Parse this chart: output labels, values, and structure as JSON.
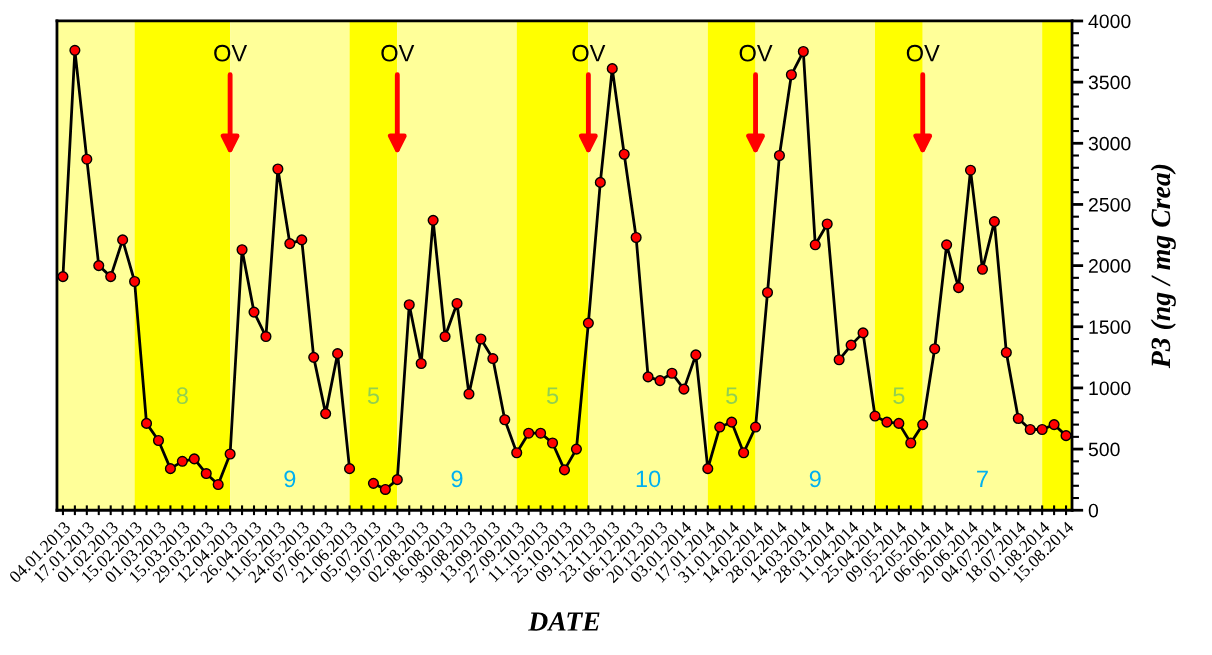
{
  "chart_data": {
    "type": "line",
    "xlabel": "DATE",
    "ylabel": "P3 (ng / mg Crea)",
    "categories": [
      "04.01.2013",
      null,
      "17.01.2013",
      null,
      "01.02.2013",
      null,
      "15.02.2013",
      null,
      "01.03.2013",
      null,
      "15.03.2013",
      null,
      "29.03.2013",
      null,
      "12.04.2013",
      null,
      "26.04.2013",
      null,
      "11.05.2013",
      null,
      "24.05.2013",
      null,
      "07.06.2013",
      null,
      "21.06.2013",
      null,
      "05.07.2013",
      null,
      "19.07.2013",
      null,
      "02.08.2013",
      null,
      "16.08.2013",
      null,
      "30.08.2013",
      null,
      "13.09.2013",
      null,
      "27.09.2013",
      null,
      "11.10.2013",
      null,
      "25.10.2013",
      null,
      "09.11.2013",
      null,
      "23.11.2013",
      null,
      "06.12.2013",
      null,
      "20.12.2013",
      null,
      "03.01.2014",
      null,
      "17.01.2014",
      null,
      "31.01.2014",
      null,
      "14.02.2014",
      null,
      "28.02.2014",
      null,
      "14.03.2014",
      null,
      "28.03.2014",
      null,
      "11.04.2014",
      null,
      "25.04.2014",
      null,
      "09.05.2014",
      null,
      "22.05.2014",
      null,
      "06.06.2014",
      null,
      "20.06.2014",
      null,
      "04.07.2014",
      null,
      "18.07.2014",
      null,
      "01.08.2014",
      null,
      "15.08.2014"
    ],
    "series": [
      {
        "color": "#ff0000",
        "values": [
          1910,
          3760,
          2870,
          2000,
          1910,
          2210,
          1870,
          710,
          570,
          340,
          400,
          420,
          300,
          210,
          460,
          2130,
          1620,
          1420,
          2790,
          2180,
          2210,
          1250,
          790,
          1280,
          340,
          null,
          220,
          170,
          250,
          1680,
          1200,
          2370,
          1420,
          1690,
          950,
          1400,
          1240,
          740,
          470,
          630,
          630,
          550,
          330,
          500,
          1530,
          2680,
          3610,
          2910,
          2230,
          1090,
          1060,
          1120,
          990,
          1270,
          340,
          680,
          720,
          470,
          680,
          1780,
          2900,
          3560,
          3750,
          2170,
          2340,
          1230,
          1350,
          1450,
          770,
          720,
          710,
          550,
          700,
          1320,
          2170,
          1820,
          2780,
          1970,
          2360,
          1290,
          750,
          660,
          660,
          700,
          610
        ]
      }
    ],
    "ylim": [
      0,
      4000
    ],
    "yticks": [
      0,
      500,
      1000,
      1500,
      2000,
      2500,
      3000,
      3500,
      4000
    ],
    "marker": "circle",
    "line_style": "solid",
    "grid": false,
    "legend": false,
    "bands": [
      {
        "axis": "x",
        "from": "04.01.2013",
        "to": "15.02.2013",
        "color": "#ffff99"
      },
      {
        "axis": "x",
        "from": "15.02.2013",
        "to": "12.04.2013",
        "color": "#ffff00",
        "label": "8"
      },
      {
        "axis": "x",
        "from": "12.04.2013",
        "to": "21.06.2013",
        "color": "#ffff99",
        "label": "9"
      },
      {
        "axis": "x",
        "from": "21.06.2013",
        "to": "19.07.2013",
        "color": "#ffff00",
        "label": "5"
      },
      {
        "axis": "x",
        "from": "19.07.2013",
        "to": "27.09.2013",
        "color": "#ffff99",
        "label": "9"
      },
      {
        "axis": "x",
        "from": "27.09.2013",
        "to": "09.11.2013",
        "color": "#ffff00",
        "label": "5"
      },
      {
        "axis": "x",
        "from": "09.11.2013",
        "to": "17.01.2014",
        "color": "#ffff99",
        "label": "10"
      },
      {
        "axis": "x",
        "from": "17.01.2014",
        "to": "14.02.2014",
        "color": "#ffff00",
        "label": "5"
      },
      {
        "axis": "x",
        "from": "14.02.2014",
        "to": "25.04.2014",
        "color": "#ffff99",
        "label": "9"
      },
      {
        "axis": "x",
        "from": "25.04.2014",
        "to": "22.05.2014",
        "color": "#ffff00",
        "label": "5"
      },
      {
        "axis": "x",
        "from": "22.05.2014",
        "to": "01.08.2014",
        "color": "#ffff99",
        "label": "7"
      },
      {
        "axis": "x",
        "from": "01.08.2014",
        "to": "15.08.2014",
        "color": "#ffff00"
      }
    ],
    "annotations": [
      {
        "text": "OV",
        "x": "12.04.2013",
        "y": 3720
      },
      {
        "text": "OV",
        "x": "19.07.2013",
        "y": 3720
      },
      {
        "text": "OV",
        "x": "09.11.2013",
        "y": 3720
      },
      {
        "text": "OV",
        "x": "14.02.2014",
        "y": 3720
      },
      {
        "text": "OV",
        "x": "22.05.2014",
        "y": 3720
      }
    ]
  }
}
